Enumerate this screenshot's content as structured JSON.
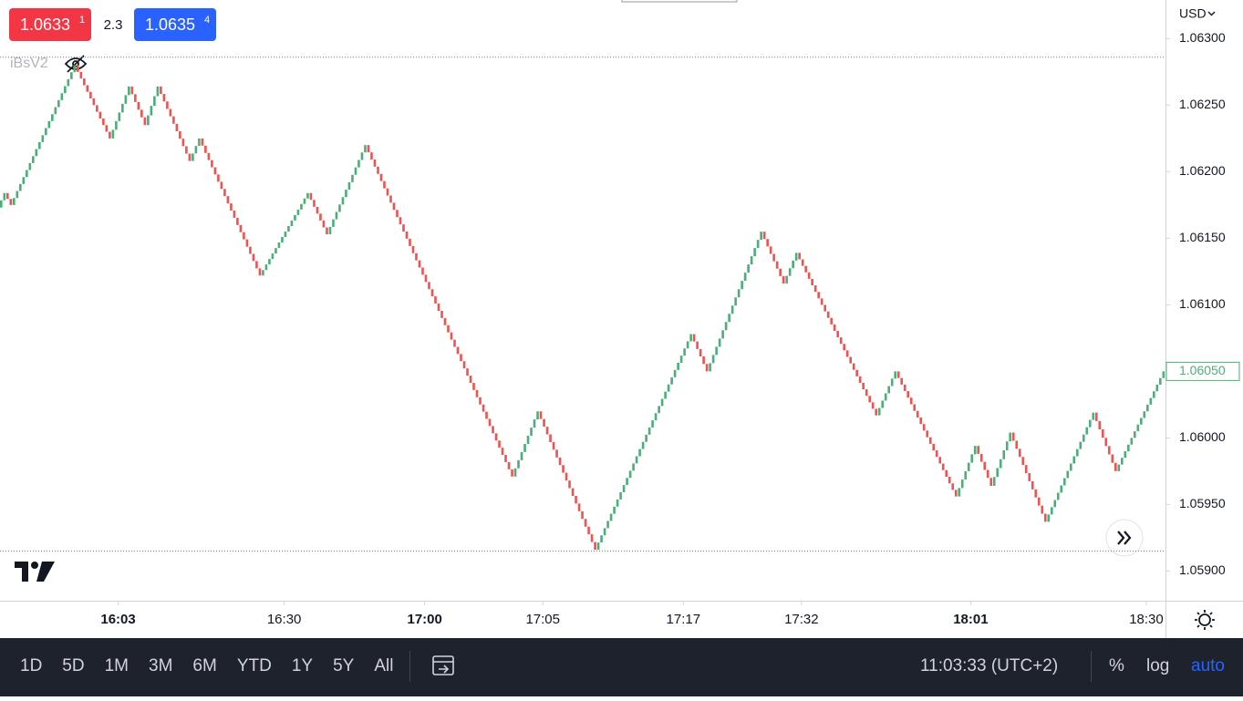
{
  "chart_data": {
    "type": "renko",
    "indicator": "iBsV2",
    "currency": "USD",
    "bid": {
      "main": "1.0633",
      "pip": "1"
    },
    "spread": "2.3",
    "ask": {
      "main": "1.0635",
      "pip": "4"
    },
    "x": [
      0,
      2,
      4,
      24,
      35,
      41,
      46,
      50,
      60,
      63,
      82,
      97,
      103,
      115,
      161,
      169,
      187,
      217,
      222,
      239,
      246,
      250,
      275,
      281,
      300,
      306,
      311,
      317,
      328,
      343,
      350,
      365
    ],
    "values": [
      1.06173,
      1.06184,
      1.06175,
      1.0628,
      1.06225,
      1.06264,
      1.06235,
      1.06264,
      1.06208,
      1.06225,
      1.06122,
      1.06184,
      1.06153,
      1.0622,
      1.05971,
      1.0602,
      1.05916,
      1.06078,
      1.0605,
      1.06155,
      1.06116,
      1.06139,
      1.06017,
      1.0605,
      1.05956,
      1.05994,
      1.05964,
      1.06004,
      1.05937,
      1.06019,
      1.05975,
      1.0605
    ],
    "up_color": "#4caf7a",
    "down_color": "#ef5350",
    "xlim": [
      0,
      365
    ],
    "xticks": [
      {
        "value": 37,
        "label": "16:03"
      },
      {
        "value": 89,
        "label": "16:30"
      },
      {
        "value": 133,
        "label": "17:00"
      },
      {
        "value": 170,
        "label": "17:05"
      },
      {
        "value": 214,
        "label": "17:17"
      },
      {
        "value": 251,
        "label": "17:32"
      },
      {
        "value": 304,
        "label": "18:01"
      },
      {
        "value": 359,
        "label": "18:30"
      }
    ],
    "ylim": [
      1.05877,
      1.06329
    ],
    "yticks": [
      {
        "value": 1.063,
        "label": "1.06300"
      },
      {
        "value": 1.0625,
        "label": "1.06250"
      },
      {
        "value": 1.062,
        "label": "1.06200"
      },
      {
        "value": 1.0615,
        "label": "1.06150"
      },
      {
        "value": 1.061,
        "label": "1.06100"
      },
      {
        "value": 1.0605,
        "label": "1.06050"
      },
      {
        "value": 1.06,
        "label": "1.06000"
      },
      {
        "value": 1.0595,
        "label": "1.05950"
      },
      {
        "value": 1.059,
        "label": "1.05900"
      }
    ],
    "last_price": {
      "value": 1.0605,
      "label": "1.06050"
    },
    "range_lines": [
      1.06286,
      1.05915
    ]
  },
  "toolbar": {
    "ranges": [
      "1D",
      "5D",
      "1M",
      "3M",
      "6M",
      "YTD",
      "1Y",
      "5Y",
      "All"
    ],
    "clock": "11:03:33 (UTC+2)",
    "percent": "%",
    "log": "log",
    "auto": "auto"
  }
}
